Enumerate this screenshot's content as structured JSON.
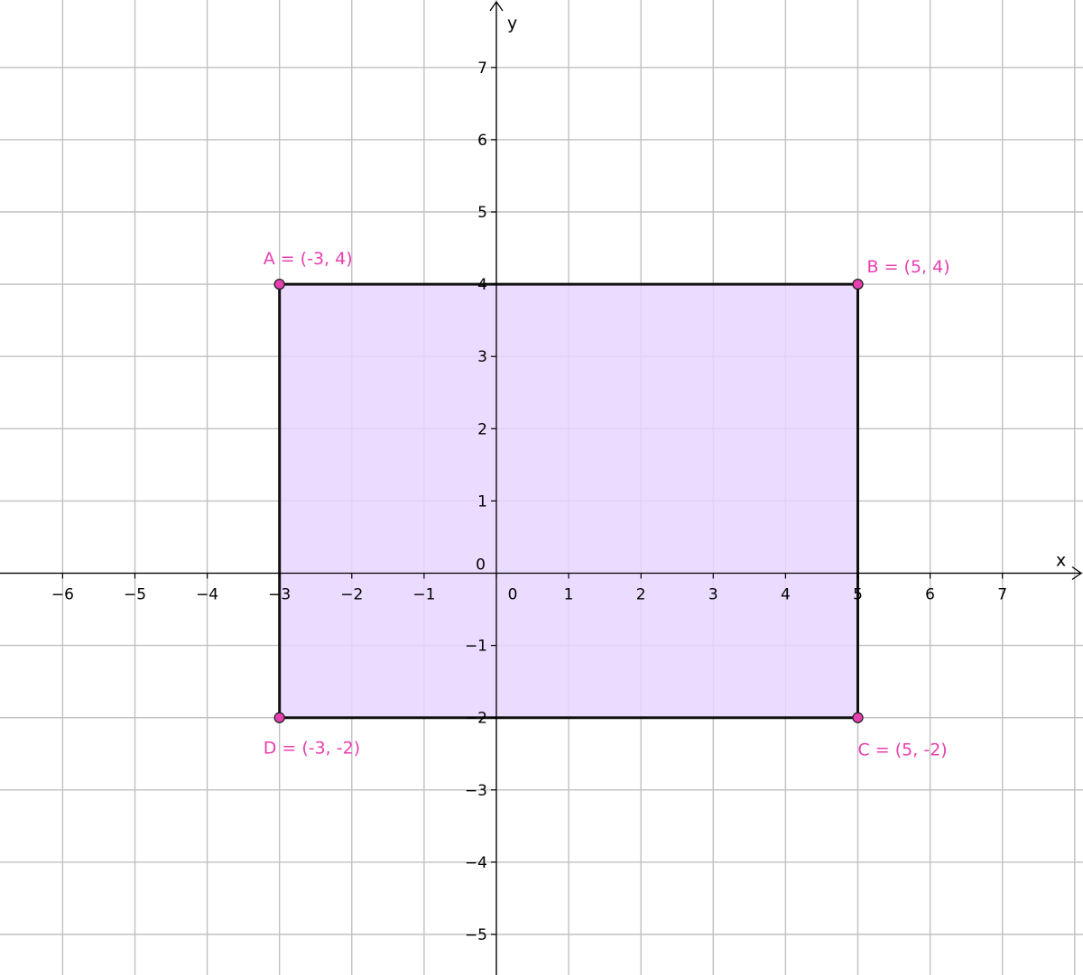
{
  "chart_data": {
    "type": "scatter",
    "xlabel": "x",
    "ylabel": "y",
    "xlim": [
      -6.9,
      7.9
    ],
    "ylim": [
      -5.55,
      7.9
    ],
    "grid": true,
    "x_ticks": [
      -6,
      -5,
      -4,
      -3,
      -2,
      -1,
      0,
      1,
      2,
      3,
      4,
      5,
      6,
      7
    ],
    "y_ticks": [
      -5,
      -4,
      -3,
      -2,
      -1,
      1,
      2,
      3,
      4,
      5,
      6,
      7
    ],
    "origin_label": "0",
    "polygon": {
      "vertices": [
        "A",
        "B",
        "C",
        "D"
      ],
      "fill": "#E8D6FF",
      "stroke": "#111111"
    },
    "points": [
      {
        "name": "A",
        "x": -3,
        "y": 4,
        "label": "A = (-3, 4)"
      },
      {
        "name": "B",
        "x": 5,
        "y": 4,
        "label": "B = (5, 4)"
      },
      {
        "name": "C",
        "x": 5,
        "y": -2,
        "label": "C = (5, -2)"
      },
      {
        "name": "D",
        "x": -3,
        "y": -2,
        "label": "D = (-3, -2)"
      }
    ],
    "point_color": "#E83FB0",
    "label_color": "#E83FB0"
  }
}
